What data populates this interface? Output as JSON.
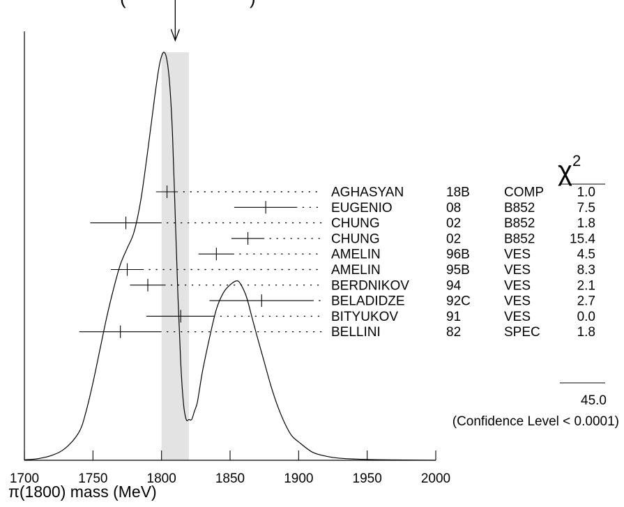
{
  "chart_data": {
    "type": "scatter",
    "title_fragment": "(",
    "title_fragment_end": ")",
    "xlabel": "π(1800) mass (MeV)",
    "xlim": [
      1700,
      2000
    ],
    "x_ticks": [
      "1700",
      "1750",
      "1800",
      "1850",
      "1900",
      "1950",
      "2000"
    ],
    "x_minor_ticks": [
      1700,
      1750,
      1800,
      1850,
      1900,
      1950,
      2000
    ],
    "average": {
      "value": 1810,
      "band": [
        1800,
        1820
      ]
    },
    "chi2_header": "χ",
    "chi2_exponent": "2",
    "measurements": [
      {
        "author": "AGHASYAN",
        "year": "18B",
        "tech": "COMP",
        "chi2": "1.0",
        "value": 1804,
        "lo": 1796,
        "hi": 1812
      },
      {
        "author": "EUGENIO",
        "year": "08",
        "tech": "B852",
        "chi2": "7.5",
        "value": 1876,
        "lo": 1853,
        "hi": 1899
      },
      {
        "author": "CHUNG",
        "year": "02",
        "tech": "B852",
        "chi2": "1.8",
        "value": 1774,
        "lo": 1748,
        "hi": 1800
      },
      {
        "author": "CHUNG",
        "year": "02",
        "tech": "B852",
        "chi2": "15.4",
        "value": 1863,
        "lo": 1851,
        "hi": 1875
      },
      {
        "author": "AMELIN",
        "year": "96B",
        "tech": "VES",
        "chi2": "4.5",
        "value": 1840,
        "lo": 1827,
        "hi": 1853
      },
      {
        "author": "AMELIN",
        "year": "95B",
        "tech": "VES",
        "chi2": "8.3",
        "value": 1775,
        "lo": 1763,
        "hi": 1787
      },
      {
        "author": "BERDNIKOV",
        "year": "94",
        "tech": "VES",
        "chi2": "2.1",
        "value": 1790,
        "lo": 1777,
        "hi": 1803
      },
      {
        "author": "BELADIDZE",
        "year": "92C",
        "tech": "VES",
        "chi2": "2.7",
        "value": 1873,
        "lo": 1835,
        "hi": 1911
      },
      {
        "author": "BITYUKOV",
        "year": "91",
        "tech": "VES",
        "chi2": "0.0",
        "value": 1814,
        "lo": 1789,
        "hi": 1839
      },
      {
        "author": "BELLINI",
        "year": "82",
        "tech": "SPEC",
        "chi2": "1.8",
        "value": 1770,
        "lo": 1740,
        "hi": 1800
      }
    ],
    "chi2_total": "45.0",
    "confidence_note": "(Confidence Level < 0.0001)",
    "ideogram": {
      "x": [
        1700,
        1710,
        1720,
        1730,
        1740,
        1745,
        1750,
        1755,
        1760,
        1765,
        1770,
        1775,
        1780,
        1785,
        1790,
        1795,
        1798,
        1800,
        1802,
        1804,
        1806,
        1808,
        1810,
        1812,
        1814,
        1816,
        1818,
        1820,
        1822,
        1824,
        1826,
        1828,
        1830,
        1835,
        1840,
        1845,
        1850,
        1855,
        1858,
        1862,
        1866,
        1870,
        1875,
        1880,
        1885,
        1890,
        1895,
        1900,
        1910,
        1920,
        1930,
        1950,
        1970,
        2000
      ],
      "y": [
        0.001,
        0.004,
        0.012,
        0.03,
        0.07,
        0.12,
        0.19,
        0.27,
        0.35,
        0.42,
        0.48,
        0.52,
        0.56,
        0.64,
        0.76,
        0.89,
        0.96,
        0.99,
        1.0,
        0.98,
        0.92,
        0.8,
        0.6,
        0.4,
        0.24,
        0.14,
        0.1,
        0.1,
        0.1,
        0.12,
        0.14,
        0.18,
        0.22,
        0.3,
        0.37,
        0.41,
        0.43,
        0.44,
        0.43,
        0.4,
        0.35,
        0.3,
        0.24,
        0.18,
        0.13,
        0.09,
        0.06,
        0.045,
        0.02,
        0.01,
        0.005,
        0.002,
        0.001,
        0.0
      ]
    }
  }
}
